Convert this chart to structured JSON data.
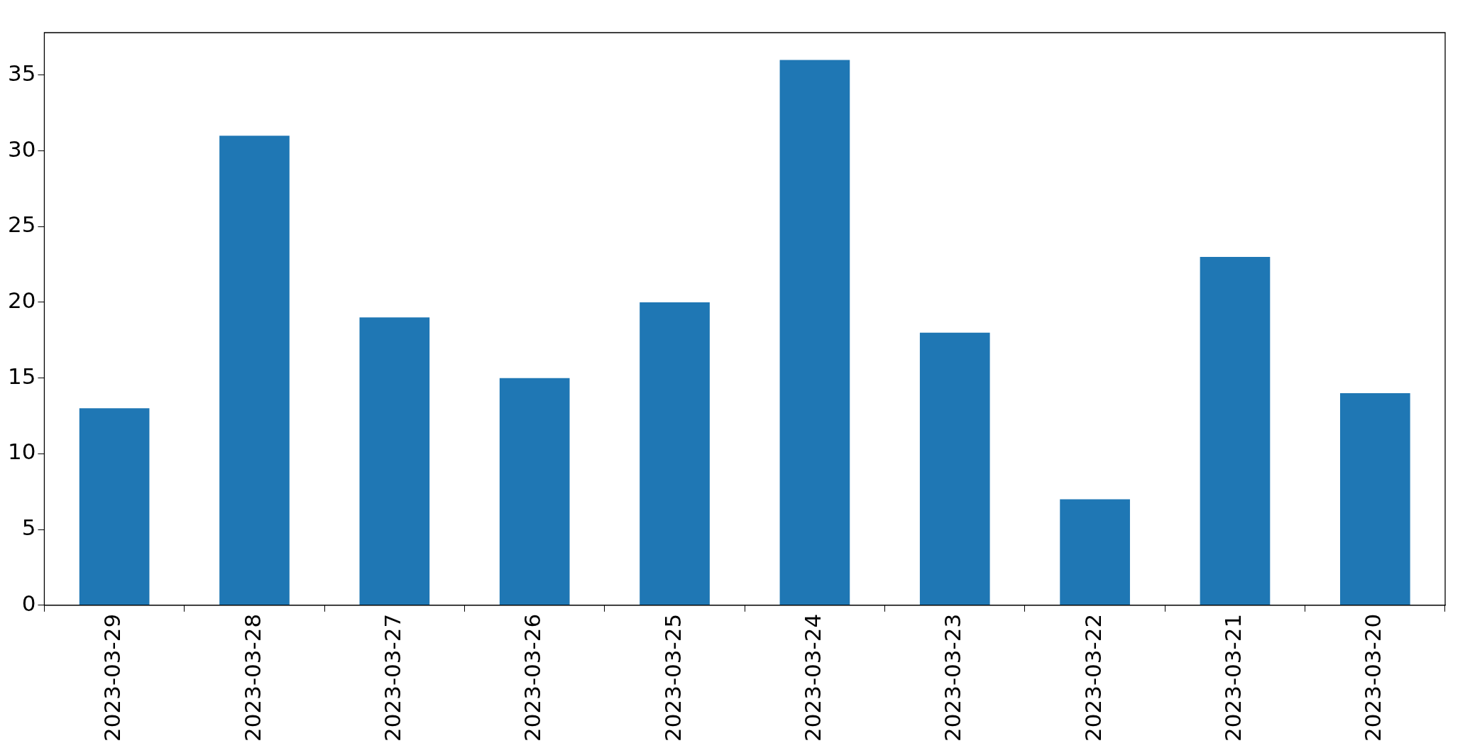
{
  "chart_data": {
    "type": "bar",
    "categories": [
      "2023-03-29",
      "2023-03-28",
      "2023-03-27",
      "2023-03-26",
      "2023-03-25",
      "2023-03-24",
      "2023-03-23",
      "2023-03-22",
      "2023-03-21",
      "2023-03-20"
    ],
    "values": [
      13,
      31,
      19,
      15,
      20,
      36,
      18,
      7,
      23,
      14
    ],
    "color": "#1f77b4",
    "ylim": [
      0,
      37.8
    ],
    "yticks": [
      0,
      5,
      10,
      15,
      20,
      25,
      30,
      35
    ],
    "grid": false,
    "legend": false
  }
}
